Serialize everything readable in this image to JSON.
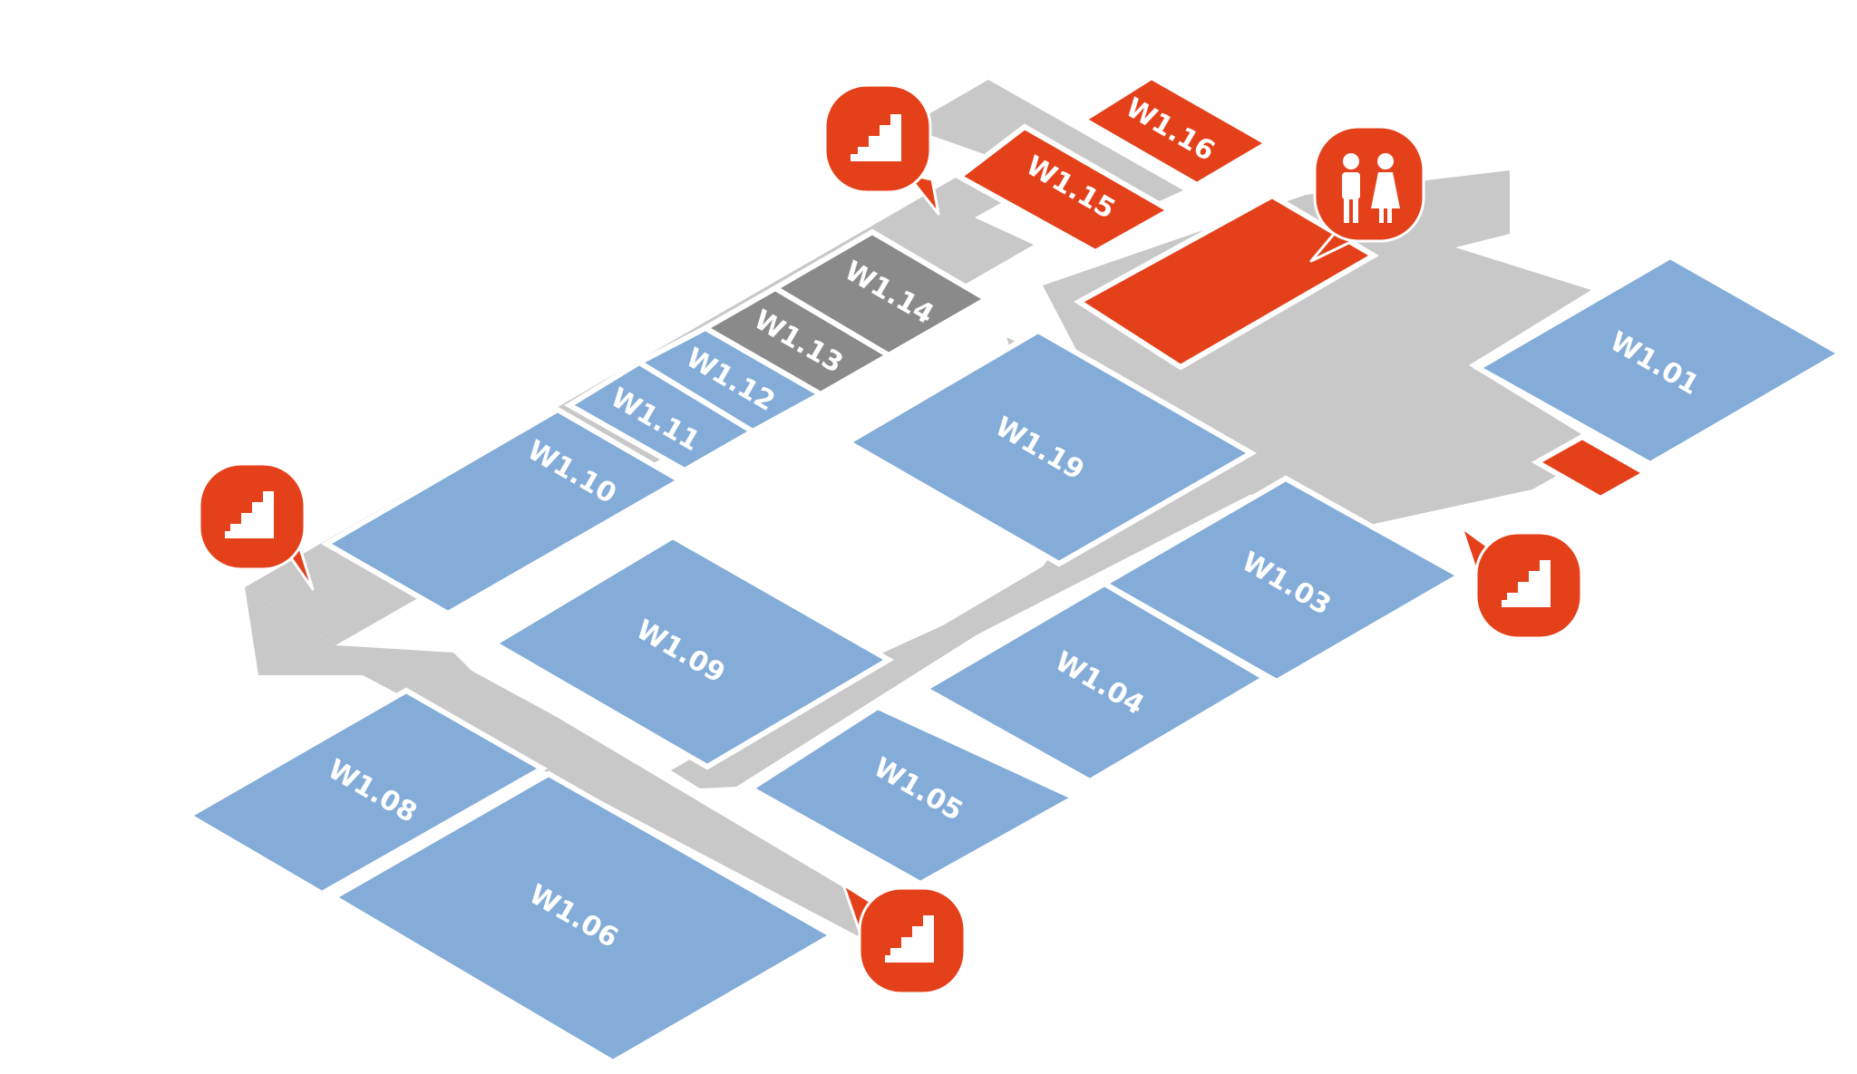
{
  "map": {
    "colors": {
      "corridor": "#c8c8c8",
      "room_standard": "#84acd8",
      "room_unavailable": "#8a8a8a",
      "facility": "#e4401a",
      "label": "#ffffff"
    },
    "rooms": {
      "w1_01": "W1.01",
      "w1_03": "W1.03",
      "w1_04": "W1.04",
      "w1_05": "W1.05",
      "w1_06": "W1.06",
      "w1_08": "W1.08",
      "w1_09": "W1.09",
      "w1_10": "W1.10",
      "w1_11": "W1.11",
      "w1_12": "W1.12",
      "w1_13": "W1.13",
      "w1_14": "W1.14",
      "w1_15": "W1.15",
      "w1_16": "W1.16",
      "w1_19": "W1.19"
    },
    "markers": [
      {
        "id": "stairs-marker-northwest",
        "icon": "stairs-icon"
      },
      {
        "id": "stairs-marker-west",
        "icon": "stairs-icon"
      },
      {
        "id": "stairs-marker-east",
        "icon": "stairs-icon"
      },
      {
        "id": "stairs-marker-south",
        "icon": "stairs-icon"
      },
      {
        "id": "restroom-marker",
        "icon": "restroom-icon"
      }
    ]
  }
}
